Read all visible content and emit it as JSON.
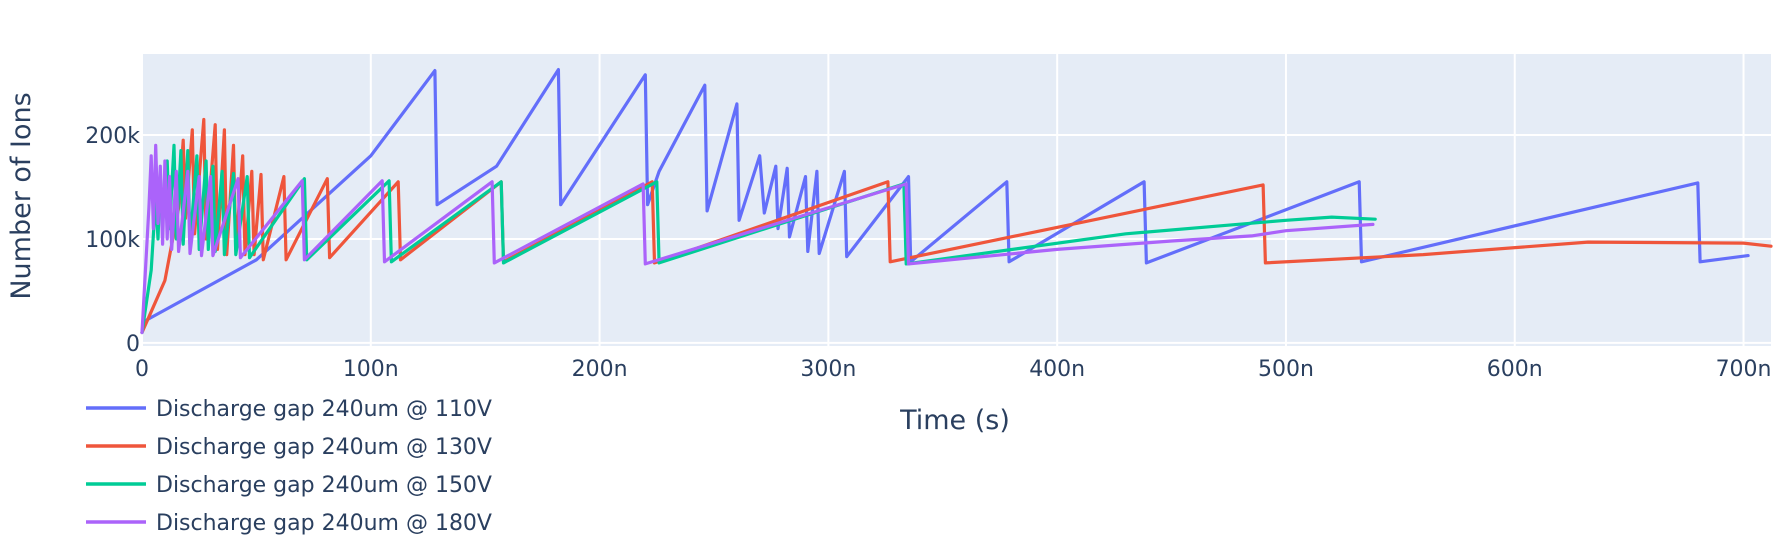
{
  "chart_data": {
    "type": "line",
    "xlabel": "Time (s)",
    "ylabel": "Number of Ions",
    "xlim": [
      0,
      712
    ],
    "ylim": [
      -3,
      278
    ],
    "x_unit_note_suffix": "n",
    "x_ticks": [
      {
        "value": 0,
        "label": "0"
      },
      {
        "value": 100,
        "label": "100n"
      },
      {
        "value": 200,
        "label": "200n"
      },
      {
        "value": 300,
        "label": "300n"
      },
      {
        "value": 400,
        "label": "400n"
      },
      {
        "value": 500,
        "label": "500n"
      },
      {
        "value": 600,
        "label": "600n"
      },
      {
        "value": 700,
        "label": "700n"
      }
    ],
    "y_ticks": [
      {
        "value": 0,
        "label": "0"
      },
      {
        "value": 100,
        "label": "100k"
      },
      {
        "value": 200,
        "label": "200k"
      }
    ],
    "grid": true,
    "legend_position": "bottom-left",
    "colors": {
      "plot_bg": "#e5ecf6",
      "grid": "#ffffff",
      "text": "#2a3f5f"
    },
    "series": [
      {
        "name": "Discharge gap 240um @ 110V",
        "color": "#636efa",
        "points": [
          [
            0,
            10
          ],
          [
            2,
            22
          ],
          [
            50,
            80
          ],
          [
            100,
            180
          ],
          [
            128,
            262
          ],
          [
            129,
            133
          ],
          [
            155,
            170
          ],
          [
            182,
            263
          ],
          [
            183,
            133
          ],
          [
            220,
            258
          ],
          [
            221,
            133
          ],
          [
            226,
            165
          ],
          [
            246,
            248
          ],
          [
            247,
            127
          ],
          [
            260,
            230
          ],
          [
            261,
            118
          ],
          [
            270,
            180
          ],
          [
            272,
            125
          ],
          [
            277,
            170
          ],
          [
            278,
            110
          ],
          [
            282,
            168
          ],
          [
            283,
            102
          ],
          [
            290,
            160
          ],
          [
            291,
            88
          ],
          [
            295,
            165
          ],
          [
            296,
            86
          ],
          [
            307,
            165
          ],
          [
            308,
            83
          ],
          [
            335,
            160
          ],
          [
            336,
            78
          ],
          [
            378,
            155
          ],
          [
            379,
            78
          ],
          [
            438,
            155
          ],
          [
            439,
            77
          ],
          [
            532,
            155
          ],
          [
            533,
            78
          ],
          [
            680,
            154
          ],
          [
            681,
            78
          ],
          [
            702,
            84
          ]
        ]
      },
      {
        "name": "Discharge gap 240um @ 130V",
        "color": "#ef553b",
        "points": [
          [
            0,
            10
          ],
          [
            4,
            30
          ],
          [
            10,
            60
          ],
          [
            16,
            130
          ],
          [
            18,
            195
          ],
          [
            19,
            120
          ],
          [
            22,
            205
          ],
          [
            23,
            105
          ],
          [
            27,
            215
          ],
          [
            28,
            100
          ],
          [
            32,
            210
          ],
          [
            33,
            90
          ],
          [
            36,
            205
          ],
          [
            37,
            85
          ],
          [
            40,
            190
          ],
          [
            41,
            90
          ],
          [
            44,
            180
          ],
          [
            45,
            85
          ],
          [
            48,
            165
          ],
          [
            49,
            85
          ],
          [
            52,
            162
          ],
          [
            53,
            80
          ],
          [
            62,
            160
          ],
          [
            63,
            80
          ],
          [
            81,
            158
          ],
          [
            82,
            82
          ],
          [
            112,
            155
          ],
          [
            113,
            80
          ],
          [
            157,
            155
          ],
          [
            158,
            78
          ],
          [
            223,
            155
          ],
          [
            224,
            77
          ],
          [
            326,
            155
          ],
          [
            327,
            78
          ],
          [
            490,
            152
          ],
          [
            491,
            77
          ],
          [
            560,
            85
          ],
          [
            632,
            97
          ],
          [
            700,
            96
          ],
          [
            712,
            93
          ]
        ]
      },
      {
        "name": "Discharge gap 240um @ 150V",
        "color": "#00cc96",
        "points": [
          [
            0,
            10
          ],
          [
            4,
            70
          ],
          [
            6,
            140
          ],
          [
            7,
            100
          ],
          [
            8,
            160
          ],
          [
            9,
            115
          ],
          [
            11,
            175
          ],
          [
            12,
            110
          ],
          [
            14,
            190
          ],
          [
            15,
            100
          ],
          [
            17,
            185
          ],
          [
            18,
            95
          ],
          [
            20,
            185
          ],
          [
            21,
            95
          ],
          [
            24,
            180
          ],
          [
            25,
            90
          ],
          [
            28,
            175
          ],
          [
            29,
            90
          ],
          [
            31,
            170
          ],
          [
            32,
            88
          ],
          [
            35,
            165
          ],
          [
            36,
            85
          ],
          [
            40,
            163
          ],
          [
            41,
            85
          ],
          [
            46,
            160
          ],
          [
            47,
            82
          ],
          [
            71,
            158
          ],
          [
            72,
            80
          ],
          [
            108,
            156
          ],
          [
            109,
            78
          ],
          [
            157,
            155
          ],
          [
            158,
            77
          ],
          [
            225,
            155
          ],
          [
            226,
            77
          ],
          [
            333,
            153
          ],
          [
            334,
            76
          ],
          [
            430,
            105
          ],
          [
            500,
            118
          ],
          [
            520,
            121
          ],
          [
            539,
            119
          ]
        ]
      },
      {
        "name": "Discharge gap 240um @ 180V",
        "color": "#ab63fa",
        "points": [
          [
            0,
            10
          ],
          [
            3,
            130
          ],
          [
            4,
            180
          ],
          [
            5,
            110
          ],
          [
            6,
            190
          ],
          [
            7,
            115
          ],
          [
            8,
            170
          ],
          [
            9,
            95
          ],
          [
            10,
            175
          ],
          [
            11,
            100
          ],
          [
            12,
            160
          ],
          [
            13,
            90
          ],
          [
            15,
            165
          ],
          [
            16,
            88
          ],
          [
            20,
            165
          ],
          [
            21,
            86
          ],
          [
            25,
            160
          ],
          [
            26,
            84
          ],
          [
            30,
            160
          ],
          [
            31,
            84
          ],
          [
            42,
            158
          ],
          [
            43,
            82
          ],
          [
            70,
            156
          ],
          [
            71,
            80
          ],
          [
            105,
            156
          ],
          [
            106,
            78
          ],
          [
            153,
            155
          ],
          [
            154,
            77
          ],
          [
            219,
            153
          ],
          [
            220,
            76
          ],
          [
            334,
            153
          ],
          [
            335,
            76
          ],
          [
            400,
            90
          ],
          [
            450,
            98
          ],
          [
            485,
            103
          ],
          [
            500,
            108
          ],
          [
            538,
            114
          ]
        ]
      }
    ]
  }
}
